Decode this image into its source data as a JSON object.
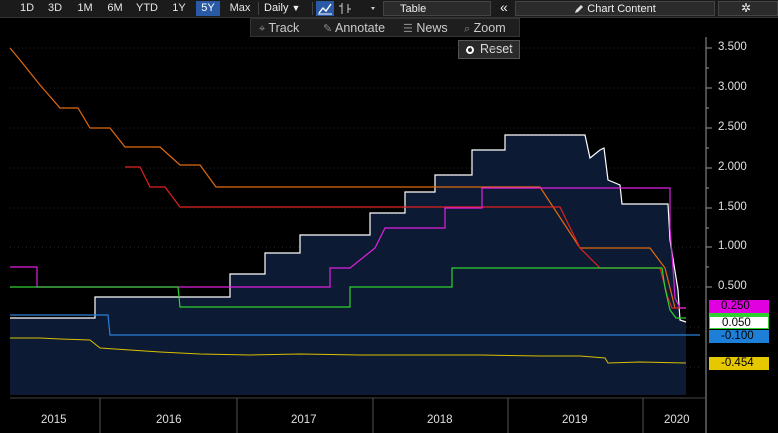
{
  "toolbar": {
    "periods": [
      "1D",
      "3D",
      "1M",
      "6M",
      "YTD",
      "1Y",
      "5Y",
      "Max"
    ],
    "active_period": "5Y",
    "frequency": "Daily",
    "frequency_arrow": "▼",
    "table_label": "Table",
    "collapse_glyph": "«",
    "chart_content_label": "Chart Content",
    "gear_glyph": "✲"
  },
  "tools": {
    "track": "Track",
    "annotate": "Annotate",
    "news": "News",
    "zoom": "Zoom",
    "reset": "Reset"
  },
  "y_axis": {
    "ticks": [
      "3.500",
      "3.000",
      "2.500",
      "2.000",
      "1.500",
      "1.000",
      "0.500"
    ]
  },
  "x_axis": {
    "years": [
      "2015",
      "2016",
      "2017",
      "2018",
      "2019",
      "2020"
    ]
  },
  "value_tags": [
    {
      "text": "0.250",
      "bg": "#e000e0",
      "color": "#000000"
    },
    {
      "text": "0.050",
      "bg": "#ffffff",
      "color": "#000000"
    },
    {
      "text": "-0.100",
      "bg": "#1e7fd8",
      "color": "#000000"
    },
    {
      "text": "-0.454",
      "bg": "#e6c800",
      "color": "#000000"
    }
  ],
  "colors": {
    "white_series": "#ffffff",
    "magenta_series": "#e020e0",
    "orange_series": "#e06a10",
    "red_series": "#e02020",
    "green_series": "#30d030",
    "blue_series": "#2a7fd8",
    "yellow_series": "#d8c000",
    "area_fill": "#0c1a33"
  }
}
